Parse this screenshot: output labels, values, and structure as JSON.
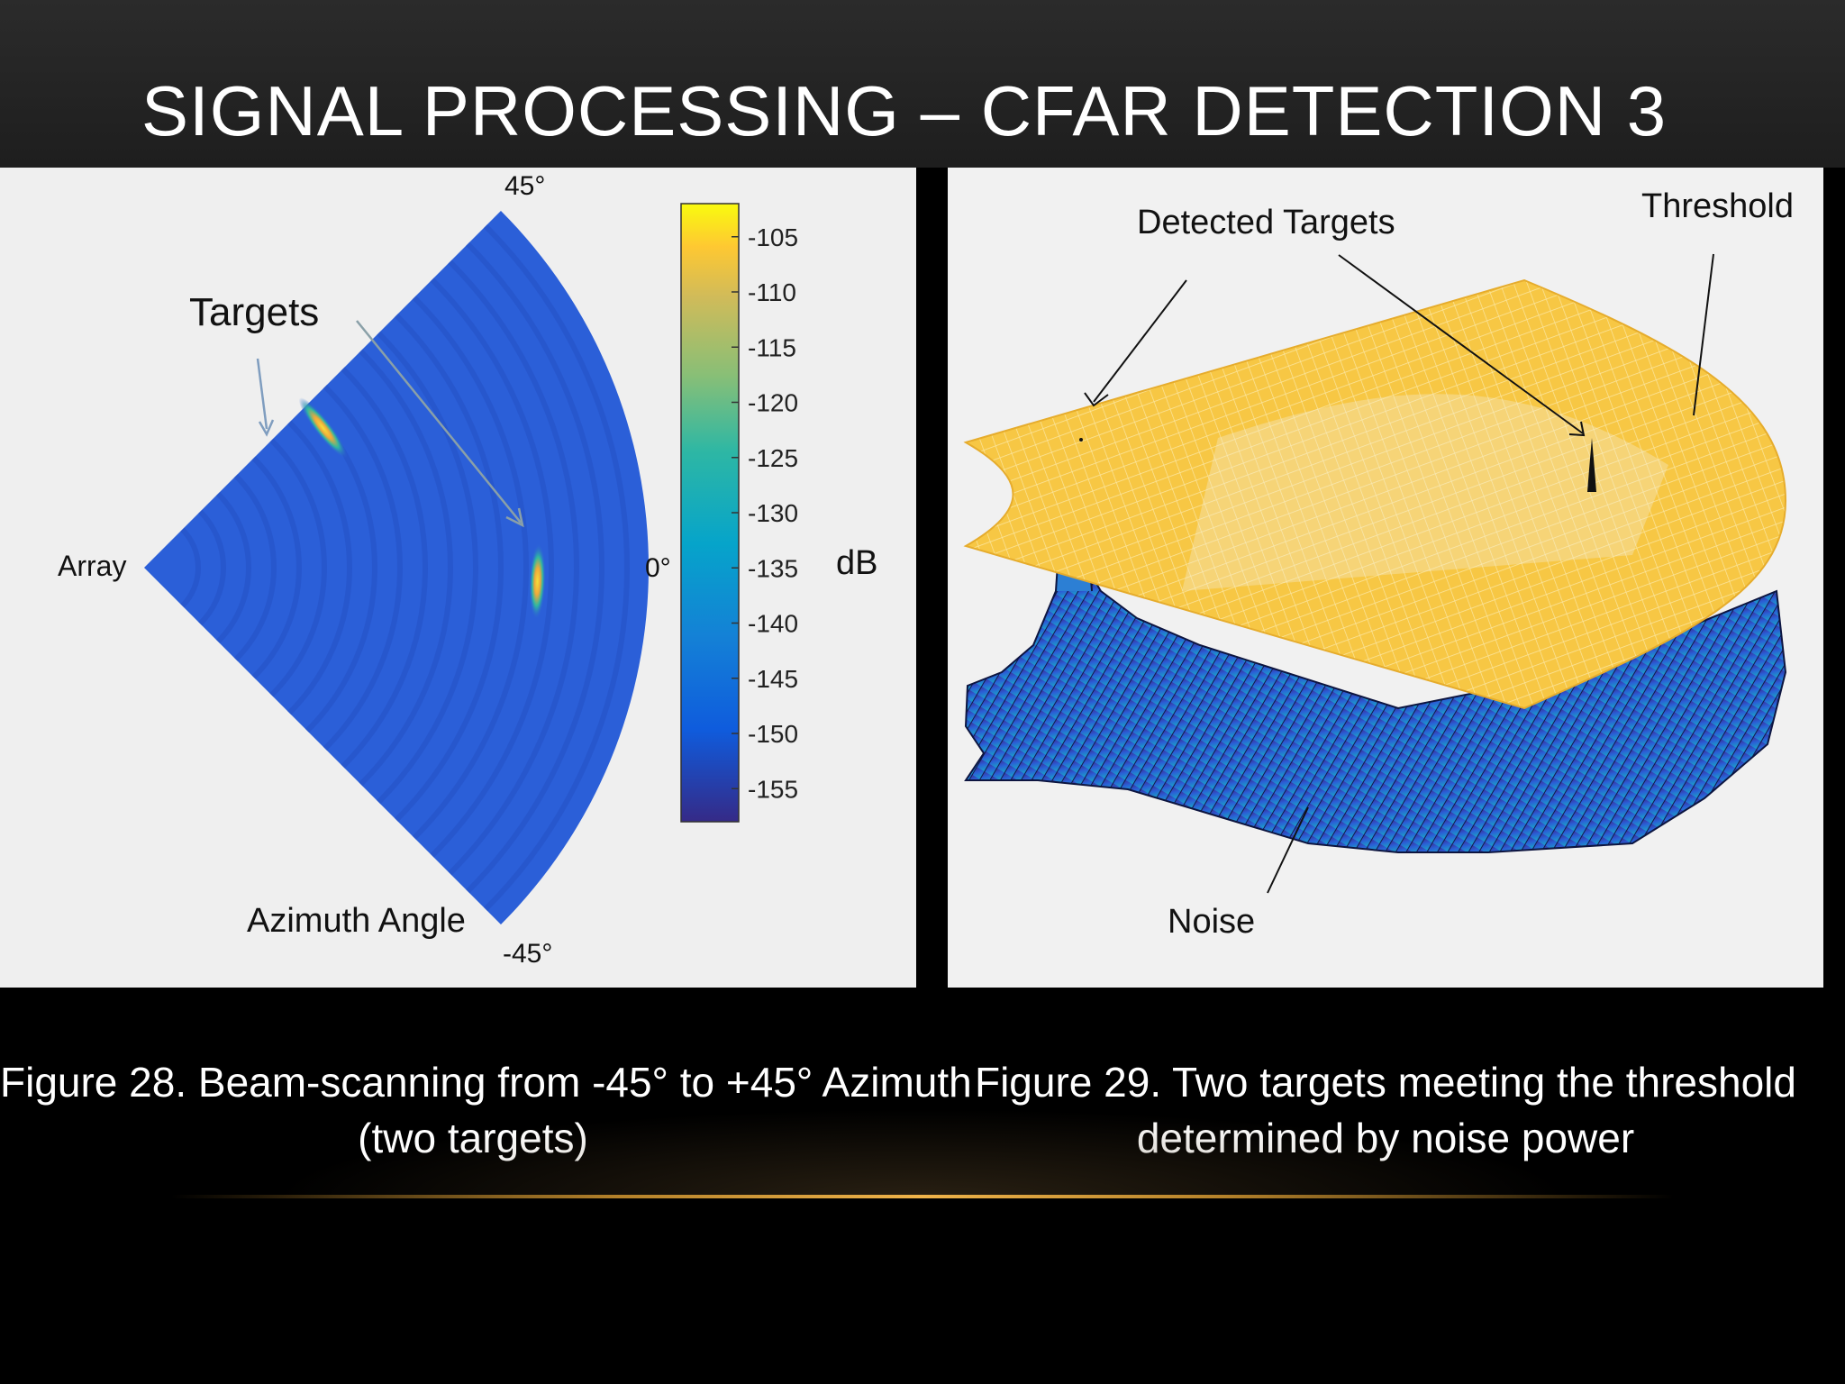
{
  "slide": {
    "title": "SIGNAL PROCESSING – CFAR DETECTION 3"
  },
  "colors": {
    "background": "#000000",
    "title_band": "#262626",
    "noise_floor": "#2f5fd6",
    "threshold_surface": "#f6c544",
    "accent_line": "#f0b44a"
  },
  "chart_data": [
    {
      "type": "heatmap",
      "description_kind": "polar sector beam-scan intensity map",
      "labels": {
        "targets": "Targets",
        "array": "Array",
        "azimuth": "Azimuth Angle",
        "angle_top": "45°",
        "angle_mid": "0°",
        "angle_bottom": "-45°"
      },
      "azimuth_range_deg": [
        -45,
        45
      ],
      "colorbar": {
        "unit": "dB",
        "range": [
          -158,
          -102
        ],
        "ticks": [
          -105,
          -110,
          -115,
          -120,
          -125,
          -130,
          -135,
          -140,
          -145,
          -150,
          -155
        ],
        "colormap": "parula"
      },
      "targets": [
        {
          "azimuth_deg": 38,
          "range_fraction": 0.45,
          "peak_db": -108
        },
        {
          "azimuth_deg": -2,
          "range_fraction": 0.78,
          "peak_db": -112
        }
      ],
      "noise_level_db": -150
    },
    {
      "type": "area",
      "description_kind": "3D surface: noise floor under CFAR threshold",
      "labels": {
        "detected": "Detected Targets",
        "threshold": "Threshold",
        "noise": "Noise"
      },
      "surfaces": [
        {
          "name": "Threshold",
          "color": "#f6c544"
        },
        {
          "name": "Noise",
          "color": "#2f5fd6"
        }
      ],
      "detected_target_count": 2
    }
  ],
  "captions": {
    "left_line1": "Figure 28. Beam-scanning from -45° to +45° Azimuth",
    "left_line2": "(two targets)",
    "right_line1": "Figure 29. Two targets meeting the threshold",
    "right_line2": "determined by noise power"
  }
}
